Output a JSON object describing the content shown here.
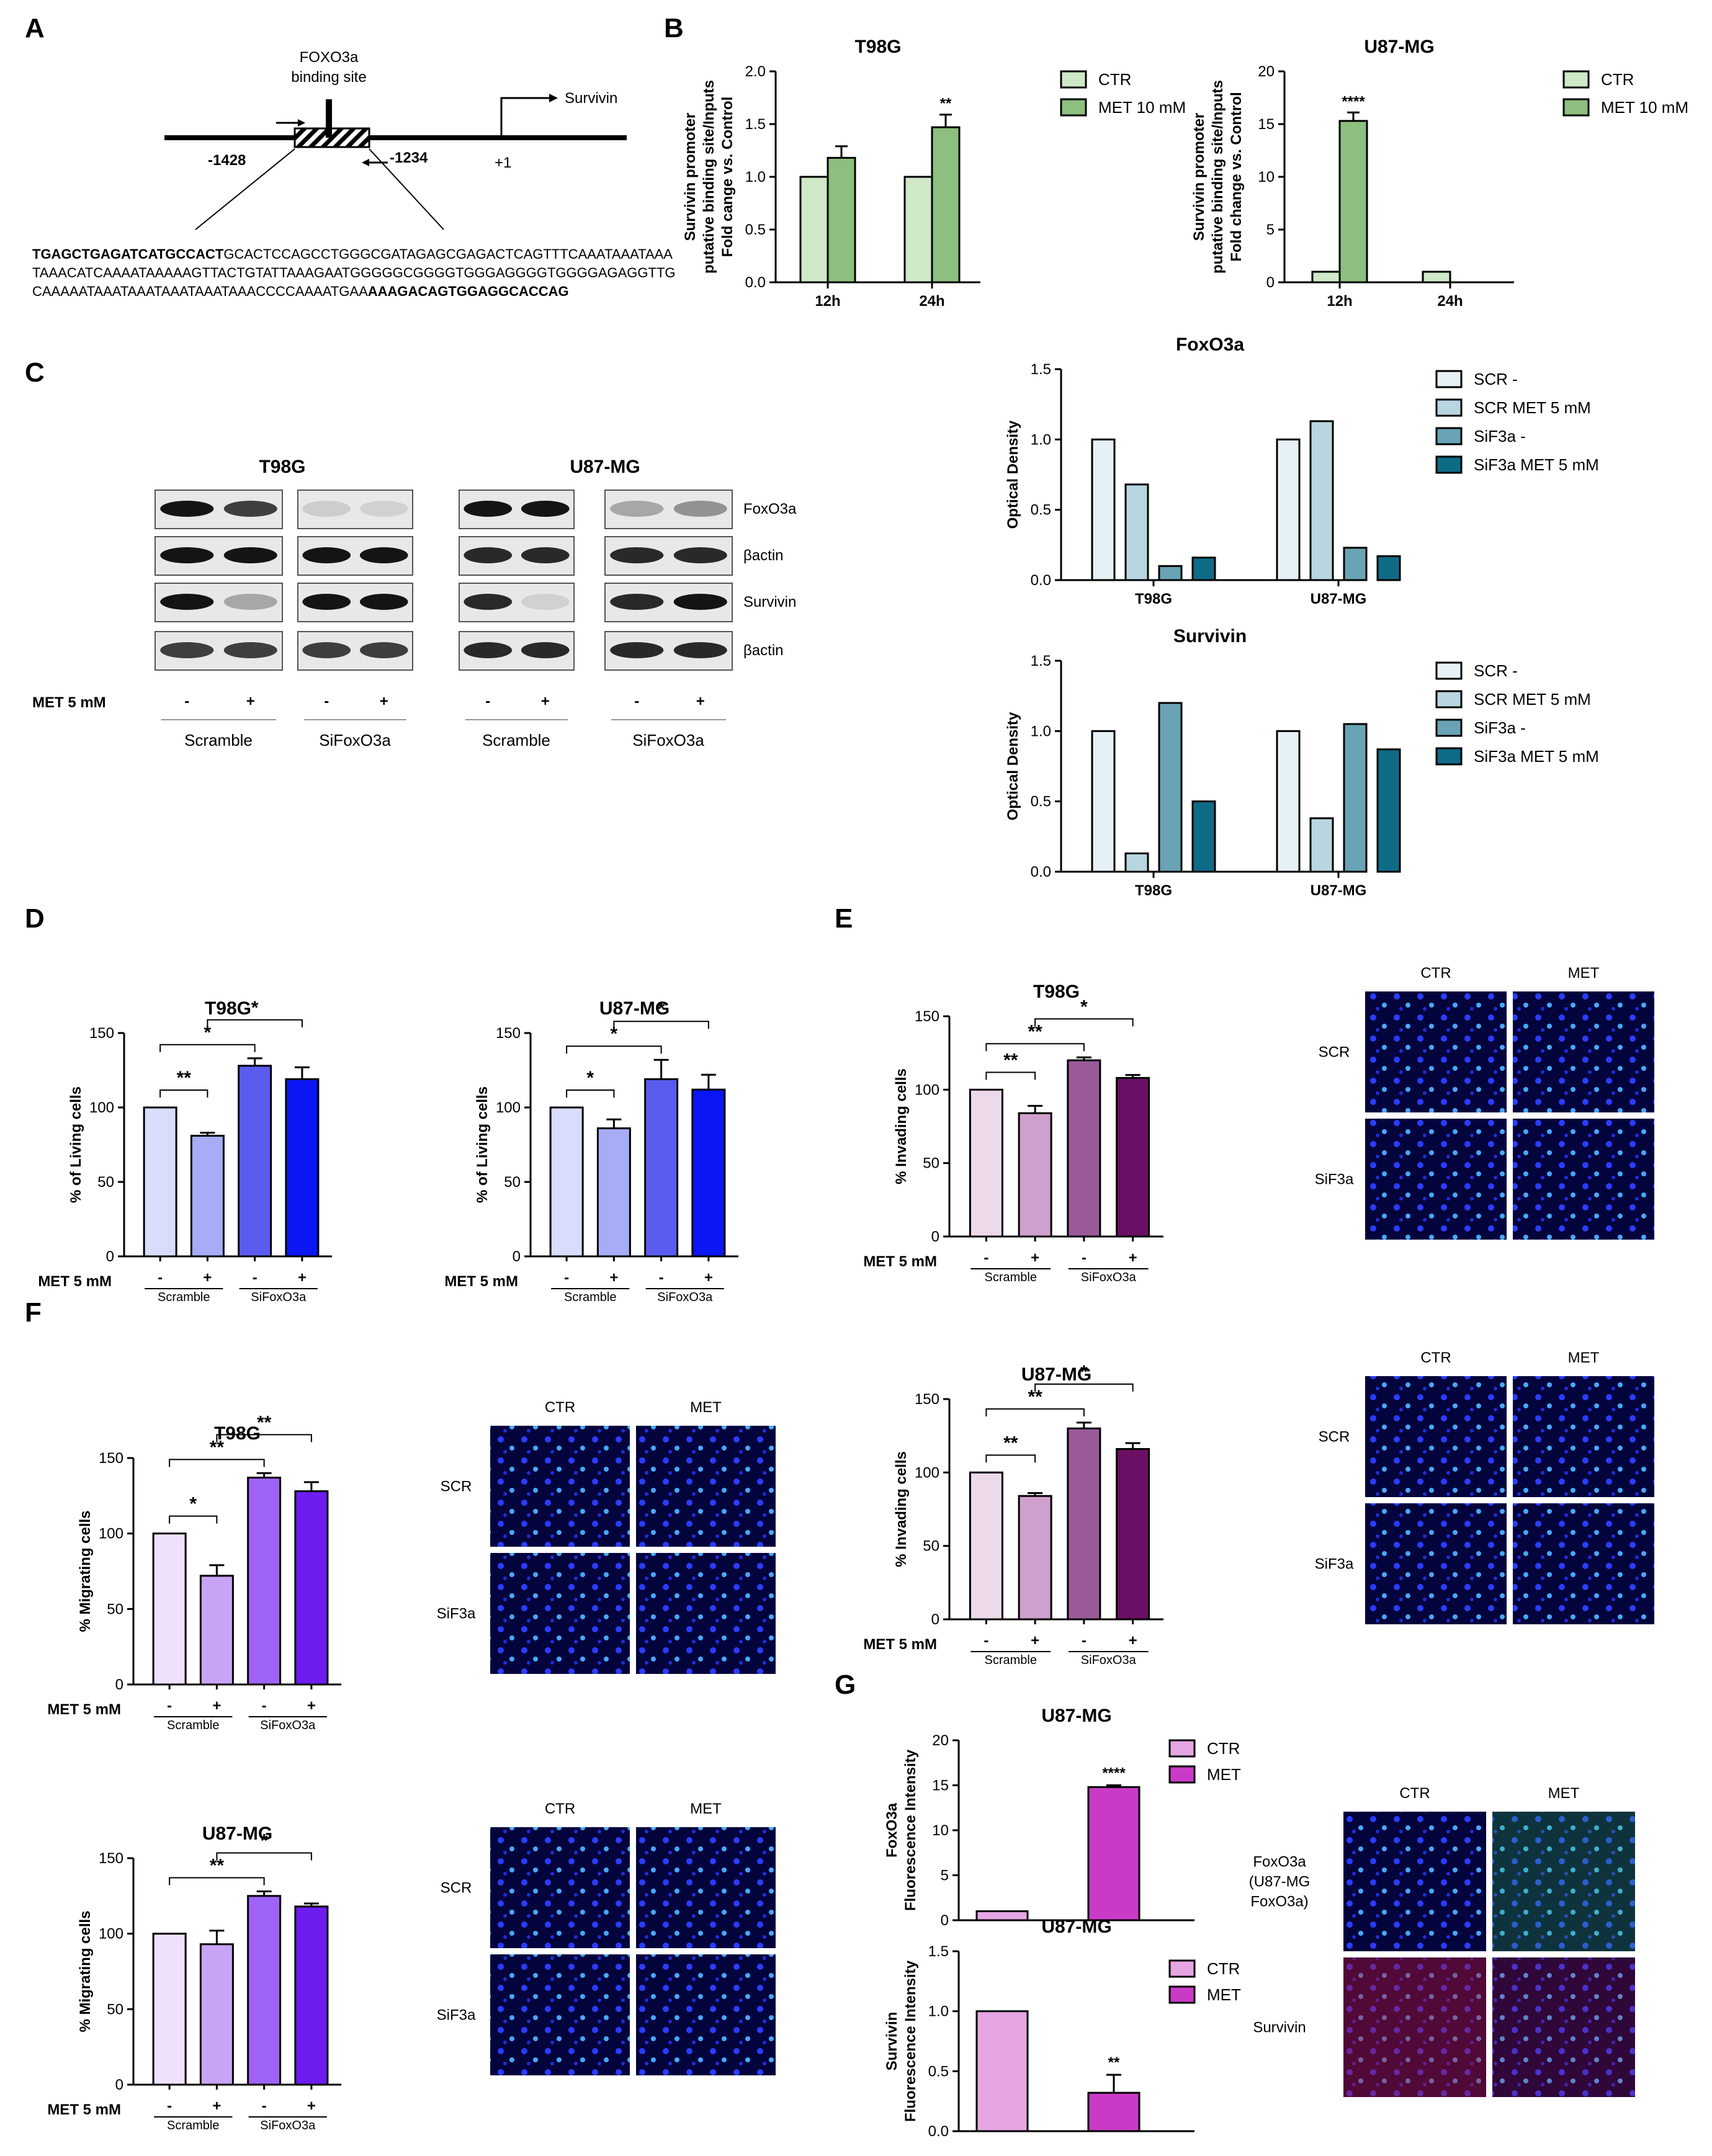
{
  "panel_letters": [
    "A",
    "B",
    "C",
    "D",
    "E",
    "F",
    "G"
  ],
  "colors": {
    "ctr_green": "#cfe8c8",
    "met_green": "#8dbf7e",
    "scr": "#e6f1f5",
    "scr_met": "#b8d6e0",
    "sif": "#6aa3b6",
    "sif_met": "#0e6b86",
    "d1": "#d9dcfb",
    "d2": "#a6acf6",
    "d3": "#5a5cf0",
    "d4": "#0a16f4",
    "e1": "#ecd9ea",
    "e2": "#cfa0cb",
    "e3": "#9a5a9a",
    "e4": "#6a0f63",
    "f1": "#efe0fb",
    "f2": "#c8a4f6",
    "f3": "#9e63f6",
    "f4": "#6d1cf0",
    "g_ctr": "#e6a6e4",
    "g_met": "#c93bc6"
  },
  "panelA": {
    "binding_site": "FOXO3a\nbinding site",
    "gene": "Survivin",
    "pos1": "-1428",
    "pos2": "-1234",
    "tss": "+1",
    "seq_bold_start": "TGAGCTGAGATCATGCCACT",
    "seq_mid": "GCACTCCAGCCTGGGCGATAGAGCGAGACTCAGTTTCAAATAAATAAATAAACATCAAAATAAAAAGTTACTGTATTAAAGAATGGGGGCGGGGTGGGAGGGGTGGGGAGAGGTTGCAAAAATAAATAAATAAATAAATAAACCCCAAAATGAA",
    "seq_bold_end": "AAAGACAGTGGAGGCACCAG"
  },
  "panelC": {
    "cell_lines": [
      "T98G",
      "U87-MG"
    ],
    "row_labels": [
      "FoxO3a",
      "βactin",
      "Survivin",
      "βactin"
    ],
    "met_label": "MET 5 mM",
    "signs": [
      "-",
      "+"
    ],
    "groups": [
      "Scramble",
      "SiFoxO3a"
    ]
  },
  "conditions": {
    "met_label": "MET 5 mM",
    "minus": "-",
    "plus": "+",
    "scramble": "Scramble",
    "sifox": "SiFoxO3a"
  },
  "images": {
    "col_ctr": "CTR",
    "col_met": "MET",
    "row_scr": "SCR",
    "row_sif": "SiF3a",
    "row_foxo": "FoxO3a\n(U87-MG\nFoxO3a)",
    "row_survivin": "Survivin"
  },
  "chart_data": [
    {
      "id": "B1",
      "type": "bar",
      "title": "T98G",
      "ylabel": "Survivin promoter\nputative binding site/Inputs\nFold cange vs. Control",
      "categories": [
        "12h",
        "24h"
      ],
      "ylim": [
        0,
        2.0
      ],
      "yticks": [
        "0.0",
        "0.5",
        "1.0",
        "1.5",
        "2.0"
      ],
      "series": [
        {
          "name": "CTR",
          "values": [
            1.0,
            1.0
          ]
        },
        {
          "name": "MET 10 mM",
          "values": [
            1.18,
            1.47
          ]
        }
      ],
      "errors": [
        [
          0,
          0
        ],
        [
          0.11,
          0.12
        ]
      ],
      "annotations": [
        {
          "category": "24h",
          "series": "MET 10 mM",
          "text": "**"
        }
      ]
    },
    {
      "id": "B2",
      "type": "bar",
      "title": "U87-MG",
      "ylabel": "Survivin promoter\nputative binding site/Inputs\nFold change vs. Control",
      "categories": [
        "12h",
        "24h"
      ],
      "ylim": [
        0,
        20
      ],
      "yticks": [
        "0",
        "5",
        "10",
        "15",
        "20"
      ],
      "series": [
        {
          "name": "CTR",
          "values": [
            1.0,
            1.0
          ]
        },
        {
          "name": "MET 10 mM",
          "values": [
            15.3,
            0
          ]
        }
      ],
      "errors": [
        [
          0,
          0
        ],
        [
          0.8,
          0
        ]
      ],
      "annotations": [
        {
          "category": "12h",
          "series": "MET 10 mM",
          "text": "****"
        }
      ]
    },
    {
      "id": "C1",
      "type": "bar",
      "title": "FoxO3a",
      "ylabel": "Optical Density",
      "categories": [
        "T98G",
        "U87-MG"
      ],
      "ylim": [
        0,
        1.5
      ],
      "yticks": [
        "0.0",
        "0.5",
        "1.0",
        "1.5"
      ],
      "series": [
        {
          "name": "SCR -",
          "values": [
            1.0,
            1.0
          ]
        },
        {
          "name": "SCR MET 5 mM",
          "values": [
            0.68,
            1.13
          ]
        },
        {
          "name": "SiF3a -",
          "values": [
            0.1,
            0.23
          ]
        },
        {
          "name": "SiF3a MET 5 mM",
          "values": [
            0.16,
            0.17
          ]
        }
      ]
    },
    {
      "id": "C2",
      "type": "bar",
      "title": "Survivin",
      "ylabel": "Optical Density",
      "categories": [
        "T98G",
        "U87-MG"
      ],
      "ylim": [
        0,
        1.5
      ],
      "yticks": [
        "0.0",
        "0.5",
        "1.0",
        "1.5"
      ],
      "series": [
        {
          "name": "SCR -",
          "values": [
            1.0,
            1.0
          ]
        },
        {
          "name": "SCR MET 5 mM",
          "values": [
            0.13,
            0.38
          ]
        },
        {
          "name": "SiF3a -",
          "values": [
            1.2,
            1.05
          ]
        },
        {
          "name": "SiF3a MET 5 mM",
          "values": [
            0.5,
            0.87
          ]
        }
      ]
    },
    {
      "id": "D1",
      "type": "bar",
      "title": "T98G",
      "ylabel": "% of Living cells",
      "ylim": [
        0,
        150
      ],
      "yticks": [
        "0",
        "50",
        "100",
        "150"
      ],
      "values": [
        100,
        81,
        128,
        119
      ],
      "errors": [
        0,
        2,
        5,
        8
      ],
      "significance": [
        {
          "from": 0,
          "to": 1,
          "text": "**"
        },
        {
          "from": 0,
          "to": 2,
          "text": "*"
        },
        {
          "from": 1,
          "to": 3,
          "text": "*"
        }
      ]
    },
    {
      "id": "D2",
      "type": "bar",
      "title": "U87-MG",
      "ylabel": "% of Living cells",
      "ylim": [
        0,
        150
      ],
      "yticks": [
        "0",
        "50",
        "100",
        "150"
      ],
      "values": [
        100,
        86,
        119,
        112
      ],
      "errors": [
        0,
        6,
        13,
        10
      ],
      "significance": [
        {
          "from": 0,
          "to": 1,
          "text": "*"
        },
        {
          "from": 0,
          "to": 2,
          "text": "*"
        },
        {
          "from": 1,
          "to": 3,
          "text": "*"
        }
      ]
    },
    {
      "id": "E1",
      "type": "bar",
      "title": "T98G",
      "ylabel": "% Invading cells",
      "ylim": [
        0,
        150
      ],
      "yticks": [
        "0",
        "50",
        "100",
        "150"
      ],
      "values": [
        100,
        84,
        120,
        108
      ],
      "errors": [
        0,
        5,
        2,
        2
      ],
      "significance": [
        {
          "from": 0,
          "to": 1,
          "text": "**"
        },
        {
          "from": 0,
          "to": 2,
          "text": "**"
        },
        {
          "from": 1,
          "to": 3,
          "text": "*"
        }
      ]
    },
    {
      "id": "E2",
      "type": "bar",
      "title": "U87-MG",
      "ylabel": "% Invading cells",
      "ylim": [
        0,
        150
      ],
      "yticks": [
        "0",
        "50",
        "100",
        "150"
      ],
      "values": [
        100,
        84,
        130,
        116
      ],
      "errors": [
        0,
        2,
        4,
        4
      ],
      "significance": [
        {
          "from": 0,
          "to": 1,
          "text": "**"
        },
        {
          "from": 0,
          "to": 2,
          "text": "**"
        },
        {
          "from": 1,
          "to": 3,
          "text": "*"
        }
      ]
    },
    {
      "id": "F1",
      "type": "bar",
      "title": "T98G",
      "ylabel": "% Migrating cells",
      "ylim": [
        0,
        150
      ],
      "yticks": [
        "0",
        "50",
        "100",
        "150"
      ],
      "values": [
        100,
        72,
        137,
        128
      ],
      "errors": [
        0,
        7,
        3,
        6
      ],
      "significance": [
        {
          "from": 0,
          "to": 1,
          "text": "*"
        },
        {
          "from": 0,
          "to": 2,
          "text": "**"
        },
        {
          "from": 1,
          "to": 3,
          "text": "**"
        }
      ]
    },
    {
      "id": "F2",
      "type": "bar",
      "title": "U87-MG",
      "ylabel": "% Migrating cells",
      "ylim": [
        0,
        150
      ],
      "yticks": [
        "0",
        "50",
        "100",
        "150"
      ],
      "values": [
        100,
        93,
        125,
        118
      ],
      "errors": [
        0,
        9,
        3,
        2
      ],
      "significance": [
        {
          "from": 0,
          "to": 2,
          "text": "**"
        },
        {
          "from": 1,
          "to": 3,
          "text": "*"
        }
      ]
    },
    {
      "id": "G1",
      "type": "bar",
      "title": "U87-MG",
      "ylabel": "FoxO3a\nFluorescence Intensity",
      "categories": [
        "CTR",
        "MET"
      ],
      "ylim": [
        0,
        20
      ],
      "yticks": [
        "0",
        "5",
        "10",
        "15",
        "20"
      ],
      "values": [
        1.0,
        14.8
      ],
      "errors": [
        0,
        0.2
      ],
      "annotations": [
        {
          "category": "MET",
          "text": "****"
        }
      ],
      "legend": [
        "CTR",
        "MET"
      ]
    },
    {
      "id": "G2",
      "type": "bar",
      "title": "U87-MG",
      "ylabel": "Survivin\nFluorescence Intensity",
      "categories": [
        "CTR",
        "MET"
      ],
      "ylim": [
        0,
        1.5
      ],
      "yticks": [
        "0.0",
        "0.5",
        "1.0",
        "1.5"
      ],
      "values": [
        1.0,
        0.32
      ],
      "errors": [
        0,
        0.15
      ],
      "annotations": [
        {
          "category": "MET",
          "text": "**"
        }
      ],
      "legend": [
        "CTR",
        "MET"
      ]
    }
  ]
}
